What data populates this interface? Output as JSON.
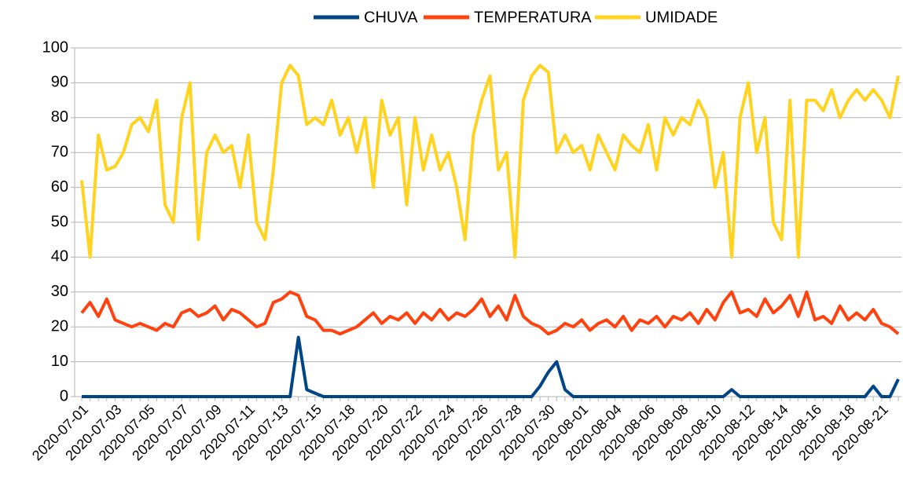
{
  "chart_data": {
    "type": "line",
    "categories": [
      "2020-07-01",
      null,
      null,
      null,
      "2020-07-03",
      null,
      null,
      null,
      "2020-07-05",
      null,
      null,
      null,
      "2020-07-07",
      null,
      null,
      null,
      "2020-07-09",
      null,
      null,
      null,
      "2020-07-11",
      null,
      null,
      null,
      "2020-07-13",
      null,
      null,
      null,
      "2020-07-15",
      null,
      null,
      null,
      "2020-07-18",
      null,
      null,
      null,
      "2020-07-20",
      null,
      null,
      null,
      "2020-07-22",
      null,
      null,
      null,
      "2020-07-24",
      null,
      null,
      null,
      "2020-07-26",
      null,
      null,
      null,
      "2020-07-28",
      null,
      null,
      null,
      "2020-07-30",
      null,
      null,
      null,
      "2020-08-01",
      null,
      null,
      null,
      "2020-08-04",
      null,
      null,
      null,
      "2020-08-06",
      null,
      null,
      null,
      "2020-08-08",
      null,
      null,
      null,
      "2020-08-10",
      null,
      null,
      null,
      "2020-08-12",
      null,
      null,
      null,
      "2020-08-14",
      null,
      null,
      null,
      "2020-08-16",
      null,
      null,
      null,
      "2020-08-18",
      null,
      null,
      null,
      "2020-08-21",
      null,
      null
    ],
    "series": [
      {
        "name": "CHUVA",
        "color": "#004586",
        "values": [
          0,
          0,
          0,
          0,
          0,
          0,
          0,
          0,
          0,
          0,
          0,
          0,
          0,
          0,
          0,
          0,
          0,
          0,
          0,
          0,
          0,
          0,
          0,
          0,
          0,
          0,
          17,
          2,
          1,
          0,
          0,
          0,
          0,
          0,
          0,
          0,
          0,
          0,
          0,
          0,
          0,
          0,
          0,
          0,
          0,
          0,
          0,
          0,
          0,
          0,
          0,
          0,
          0,
          0,
          0,
          3,
          7,
          10,
          2,
          0,
          0,
          0,
          0,
          0,
          0,
          0,
          0,
          0,
          0,
          0,
          0,
          0,
          0,
          0,
          0,
          0,
          0,
          0,
          2,
          0,
          0,
          0,
          0,
          0,
          0,
          0,
          0,
          0,
          0,
          0,
          0,
          0,
          0,
          0,
          0,
          3,
          0,
          0,
          5
        ]
      },
      {
        "name": "TEMPERATURA",
        "color": "#ff420e",
        "values": [
          24,
          27,
          23,
          28,
          22,
          21,
          20,
          21,
          20,
          19,
          21,
          20,
          24,
          25,
          23,
          24,
          26,
          22,
          25,
          24,
          22,
          20,
          21,
          27,
          28,
          30,
          29,
          23,
          22,
          19,
          19,
          18,
          19,
          20,
          22,
          24,
          21,
          23,
          22,
          24,
          21,
          24,
          22,
          25,
          22,
          24,
          23,
          25,
          28,
          23,
          26,
          22,
          29,
          23,
          21,
          20,
          18,
          19,
          21,
          20,
          22,
          19,
          21,
          22,
          20,
          23,
          19,
          22,
          21,
          23,
          20,
          23,
          22,
          24,
          21,
          25,
          22,
          27,
          30,
          24,
          25,
          23,
          28,
          24,
          26,
          29,
          23,
          30,
          22,
          23,
          21,
          26,
          22,
          24,
          22,
          25,
          21,
          20,
          18
        ]
      },
      {
        "name": "UMIDADE",
        "color": "#ffd320",
        "values": [
          62,
          40,
          75,
          65,
          66,
          70,
          78,
          80,
          76,
          85,
          55,
          50,
          80,
          90,
          45,
          70,
          75,
          70,
          72,
          60,
          75,
          50,
          45,
          65,
          90,
          95,
          92,
          78,
          80,
          78,
          85,
          75,
          80,
          70,
          80,
          60,
          85,
          75,
          80,
          55,
          80,
          65,
          75,
          65,
          70,
          60,
          45,
          75,
          85,
          92,
          65,
          70,
          40,
          85,
          92,
          95,
          93,
          70,
          75,
          70,
          72,
          65,
          75,
          70,
          65,
          75,
          72,
          70,
          78,
          65,
          80,
          75,
          80,
          78,
          85,
          80,
          60,
          70,
          40,
          80,
          90,
          70,
          80,
          50,
          45,
          85,
          40,
          85,
          85,
          82,
          88,
          80,
          85,
          88,
          85,
          88,
          85,
          80,
          92
        ]
      }
    ],
    "ylim": [
      0,
      100
    ],
    "yticks": [
      0,
      10,
      20,
      30,
      40,
      50,
      60,
      70,
      80,
      90,
      100
    ],
    "grid": true,
    "legend": "top"
  }
}
